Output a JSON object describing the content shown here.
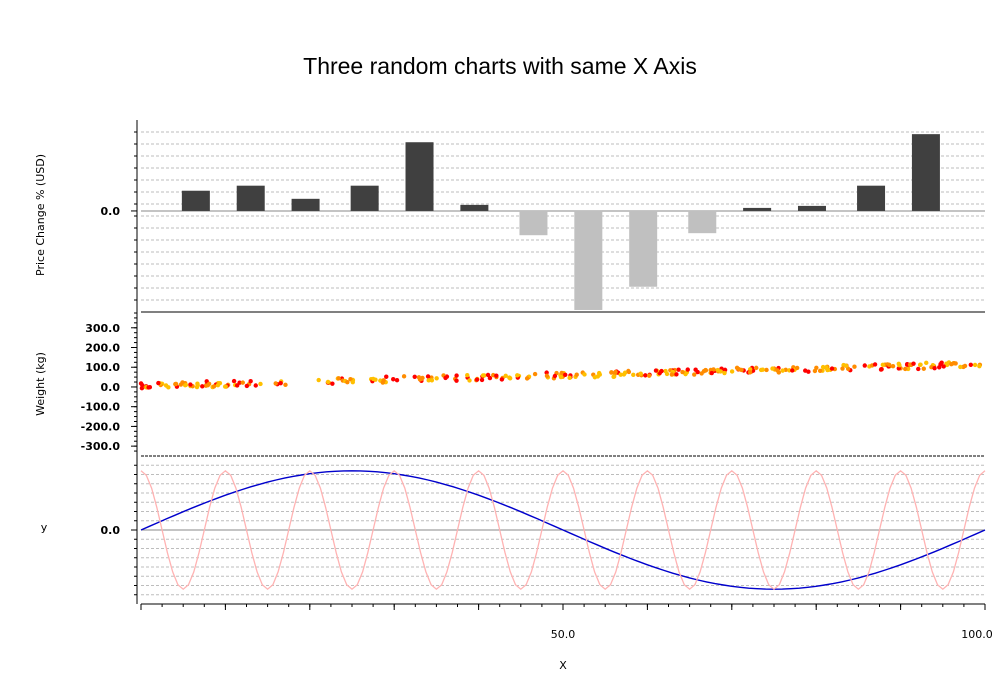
{
  "chart_data": {
    "title": "Three random charts with same X Axis",
    "xlabel": "X",
    "xlim": [
      0,
      100
    ],
    "x_tick_labels": [
      {
        "x": 50,
        "label": "50.0"
      },
      {
        "x": 100,
        "label": "100.0"
      }
    ],
    "panels": [
      {
        "type": "bar",
        "ylabel": "Price Change % (USD)",
        "ylim": [
          -10,
          9
        ],
        "y_tick_labels": [
          {
            "y": 0,
            "label": "0.0"
          }
        ],
        "x": [
          6.5,
          13,
          19.5,
          26.5,
          33,
          39.5,
          46.5,
          53,
          59.5,
          66.5,
          73,
          79.5,
          86.5,
          93
        ],
        "values": [
          2.0,
          2.5,
          1.2,
          2.5,
          6.8,
          0.6,
          -2.4,
          -9.8,
          -7.5,
          -2.2,
          0.3,
          0.5,
          2.5,
          7.6
        ],
        "colors": {
          "positive": "#404040",
          "negative": "#c0c0c0"
        }
      },
      {
        "type": "scatter",
        "ylabel": "Weight (kg)",
        "ylim": [
          -350,
          380
        ],
        "y_tick_labels": [
          {
            "y": 300,
            "label": "300.0"
          },
          {
            "y": 200,
            "label": "200.0"
          },
          {
            "y": 100,
            "label": "100.0"
          },
          {
            "y": 0,
            "label": "0.0"
          },
          {
            "y": -100,
            "label": "-100.0"
          },
          {
            "y": -200,
            "label": "-200.0"
          },
          {
            "y": -300,
            "label": "-300.0"
          }
        ],
        "trend": {
          "start": 5,
          "end": 115
        },
        "gap": [
          17.5,
          20.5
        ],
        "colors": [
          "#ff0000",
          "#ffc000",
          "#ff8c00"
        ]
      },
      {
        "type": "line",
        "ylabel": "y",
        "ylim": [
          -1.25,
          1.25
        ],
        "y_tick_labels": [
          {
            "y": 0,
            "label": "0.0"
          }
        ],
        "series": [
          {
            "kind": "sine",
            "cycles": 1,
            "amplitude": 1.0,
            "color": "#0000cc"
          },
          {
            "kind": "sine",
            "cycles": 10,
            "amplitude": 1.0,
            "phase": 0.25,
            "color": "#ffb3b3"
          }
        ]
      }
    ]
  }
}
